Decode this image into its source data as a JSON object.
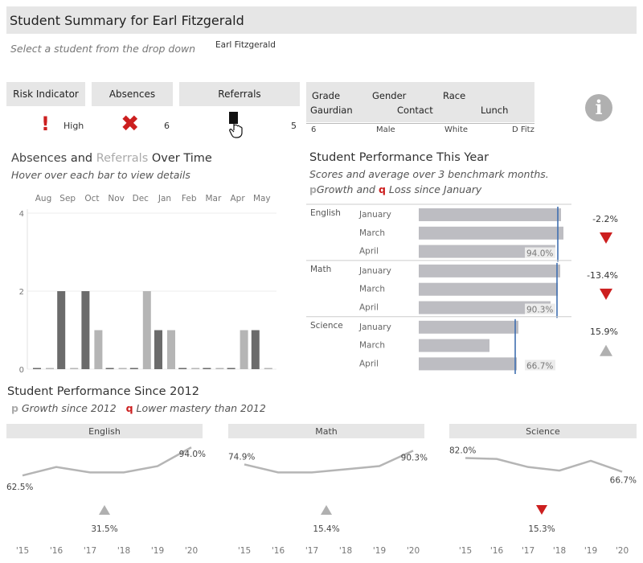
{
  "title": "Student Summary for Earl Fitzgerald",
  "select_hint": "Select a student from the drop down",
  "selected_student": "Earl Fitzgerald",
  "indicators": {
    "risk_label": "Risk Indicator",
    "risk_value": "High",
    "absences_label": "Absences",
    "absences_value": "6",
    "referrals_label": "Referrals",
    "referrals_value": "5"
  },
  "demographics": {
    "headers_row1": [
      "Grade",
      "Gender",
      "Race"
    ],
    "headers_row2": [
      "Gaurdian",
      "Contact",
      "Lunch"
    ],
    "values": [
      "6",
      "Male",
      "White",
      "D Fitz"
    ]
  },
  "absences_chart": {
    "title_part1": "Absences",
    "title_and": " and ",
    "title_part2": "Referrals",
    "title_part3": " Over Time",
    "subtitle": "Hover over each bar to view details",
    "chart_data": {
      "type": "bar",
      "categories": [
        "Aug",
        "Sep",
        "Oct",
        "Nov",
        "Dec",
        "Jan",
        "Feb",
        "Mar",
        "Apr",
        "May"
      ],
      "series": [
        {
          "name": "Absences",
          "values": [
            0,
            2,
            2,
            0,
            0,
            1,
            0,
            0,
            0,
            1
          ]
        },
        {
          "name": "Referrals",
          "values": [
            0,
            0,
            1,
            0,
            2,
            1,
            0,
            0,
            1,
            0
          ]
        }
      ],
      "yticks": [
        "4",
        "2",
        "0"
      ],
      "ylim": [
        0,
        4
      ],
      "colors": {
        "absences": "#6b6b6b",
        "referrals": "#b5b5b5"
      }
    }
  },
  "performance_year": {
    "title": "Student Performance This Year",
    "subtitle": "Scores and average over 3 benchmark months.",
    "legend_growth_glyph": "p",
    "legend_growth_text": "Growth and ",
    "legend_loss_glyph": "q",
    "legend_loss_text": " Loss since January",
    "chart_data": {
      "type": "bar",
      "subjects": [
        {
          "name": "English",
          "months": [
            "January",
            "March",
            "April"
          ],
          "values": [
            88.5,
            90.0,
            85.0
          ],
          "april_label": "94.0%",
          "avg": 86.5,
          "change": "-2.2%",
          "direction": "down"
        },
        {
          "name": "Math",
          "months": [
            "January",
            "March",
            "April"
          ],
          "values": [
            88.0,
            86.5,
            82.0
          ],
          "april_label": "90.3%",
          "avg": 86.0,
          "change": "-13.4%",
          "direction": "down"
        },
        {
          "name": "Science",
          "months": [
            "January",
            "March",
            "April"
          ],
          "values": [
            62.0,
            44.0,
            61.0
          ],
          "april_label": "66.7%",
          "avg": 60.0,
          "change": "15.9%",
          "direction": "up"
        }
      ],
      "xlim": [
        0,
        100
      ]
    }
  },
  "performance_since": {
    "title": "Student Performance Since 2012",
    "legend_growth_glyph": "p",
    "legend_growth_text": "Growth since 2012",
    "legend_loss_glyph": "q",
    "legend_loss_text": "Lower mastery than 2012",
    "chart_data": [
      {
        "type": "line",
        "subject": "English",
        "x": [
          "'15",
          "'16",
          "'17",
          "'18",
          "'19",
          "'20"
        ],
        "y": [
          62.5,
          72.0,
          66.0,
          66.0,
          73.0,
          94.0
        ],
        "start_label": "62.5%",
        "end_label": "94.0%",
        "change_label": "31.5%",
        "direction": "up"
      },
      {
        "type": "line",
        "subject": "Math",
        "x": [
          "'15",
          "'16",
          "'17",
          "'18",
          "'19",
          "'20"
        ],
        "y": [
          74.9,
          66.0,
          66.0,
          69.5,
          73.0,
          90.3
        ],
        "start_label": "74.9%",
        "end_label": "90.3%",
        "change_label": "15.4%",
        "direction": "up"
      },
      {
        "type": "line",
        "subject": "Science",
        "x": [
          "'15",
          "'16",
          "'17",
          "'18",
          "'19",
          "'20"
        ],
        "y": [
          82.0,
          81.0,
          72.0,
          68.0,
          79.0,
          66.7
        ],
        "start_label": "82.0%",
        "end_label": "66.7%",
        "change_label": "15.3%",
        "direction": "down"
      }
    ]
  },
  "colors": {
    "accent_red": "#cc1f1f",
    "gray_up": "#b0b0b0",
    "header_bg": "#e6e6e6"
  },
  "icons": {
    "risk": "exclamation-icon",
    "absences": "x-cross-icon",
    "referrals": "hand-card-icon",
    "info": "info-icon"
  }
}
